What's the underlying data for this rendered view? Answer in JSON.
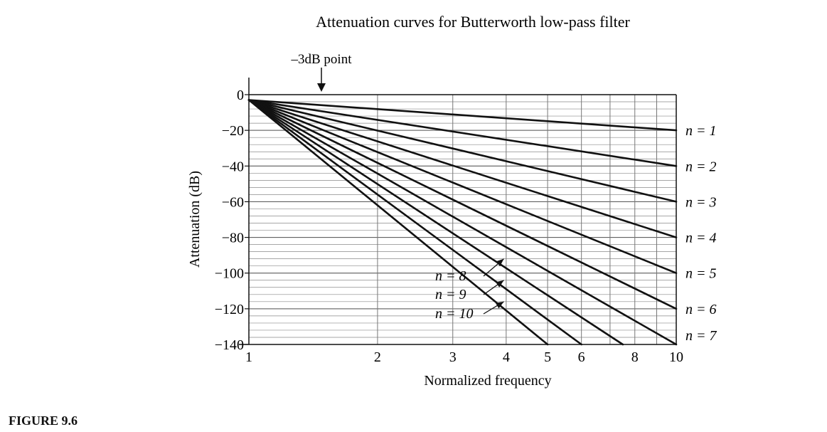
{
  "chart_data": {
    "type": "line",
    "title": "Attenuation curves for Butterworth low-pass filter",
    "xlabel": "Normalized frequency",
    "ylabel": "Attenuation (dB)",
    "x_scale": "log",
    "xlim": [
      1,
      10
    ],
    "ylim": [
      -140,
      0
    ],
    "x_ticks": [
      1,
      2,
      3,
      4,
      5,
      6,
      8,
      10
    ],
    "x_tick_labels": [
      "1",
      "2",
      "3",
      "4",
      "5",
      "6",
      "8",
      "10"
    ],
    "y_ticks": [
      0,
      -20,
      -40,
      -60,
      -80,
      -100,
      -120,
      -140
    ],
    "y_tick_labels": [
      "0",
      "−20",
      "−40",
      "−60",
      "−80",
      "−100",
      "−120",
      "−140"
    ],
    "grid": true,
    "annotation": "–3dB point",
    "series": [
      {
        "name": "n = 1",
        "order": 1,
        "x": [
          1,
          10
        ],
        "values": [
          -3,
          -20
        ]
      },
      {
        "name": "n = 2",
        "order": 2,
        "x": [
          1,
          10
        ],
        "values": [
          -3,
          -40
        ]
      },
      {
        "name": "n = 3",
        "order": 3,
        "x": [
          1,
          10
        ],
        "values": [
          -3,
          -60
        ]
      },
      {
        "name": "n = 4",
        "order": 4,
        "x": [
          1,
          10
        ],
        "values": [
          -3,
          -80
        ]
      },
      {
        "name": "n = 5",
        "order": 5,
        "x": [
          1,
          10
        ],
        "values": [
          -3,
          -100
        ]
      },
      {
        "name": "n = 6",
        "order": 6,
        "x": [
          1,
          10
        ],
        "values": [
          -3,
          -120
        ]
      },
      {
        "name": "n = 7",
        "order": 7,
        "x": [
          1,
          10
        ],
        "values": [
          -3,
          -140
        ]
      },
      {
        "name": "n = 8",
        "order": 8,
        "x": [
          1,
          7.5
        ],
        "values": [
          -3,
          -140
        ]
      },
      {
        "name": "n = 9",
        "order": 9,
        "x": [
          1,
          6
        ],
        "values": [
          -3,
          -140
        ]
      },
      {
        "name": "n = 10",
        "order": 10,
        "x": [
          1,
          5
        ],
        "values": [
          -3,
          -140
        ]
      }
    ]
  },
  "figure_caption": "FIGURE 9.6"
}
